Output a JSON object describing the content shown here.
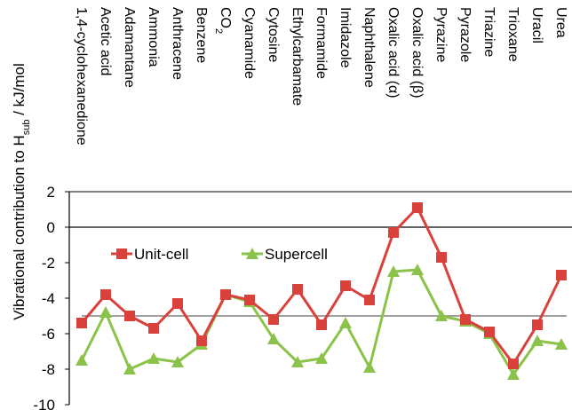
{
  "chart_data": {
    "type": "line",
    "categories": [
      "1,4-cyclohexanedione",
      "Acetic acid",
      "Adamantane",
      "Ammonia",
      "Anthracene",
      "Benzene",
      "CO2",
      "Cyanamide",
      "Cytosine",
      "Ethylcarbamate",
      "Formamide",
      "Imidazole",
      "Naphthalene",
      "Oxalic acid (α)",
      "Oxalic acid (β)",
      "Pyrazine",
      "Pyrazole",
      "Triazine",
      "Trioxane",
      "Uracil",
      "Urea"
    ],
    "series": [
      {
        "name": "Unit-cell",
        "color": "#d9413a",
        "marker": "square",
        "values": [
          -5.4,
          -3.8,
          -5.0,
          -5.7,
          -4.3,
          -6.4,
          -3.8,
          -4.1,
          -5.2,
          -3.5,
          -5.5,
          -3.3,
          -4.1,
          -0.3,
          1.1,
          -1.7,
          -5.2,
          -5.9,
          -7.7,
          -5.5,
          -2.7
        ]
      },
      {
        "name": "Supercell",
        "color": "#8bc34a",
        "marker": "triangle",
        "values": [
          -7.5,
          -4.8,
          -8.0,
          -7.4,
          -7.6,
          -6.6,
          -3.8,
          -4.2,
          -6.3,
          -7.6,
          -7.4,
          -5.4,
          -7.9,
          -2.5,
          -2.4,
          -5.0,
          -5.3,
          -6.0,
          -8.3,
          -6.4,
          -6.6
        ]
      }
    ],
    "reference_line": {
      "value": -5.0,
      "color": "#a0a0a0"
    },
    "ylabel_parts": {
      "pre": "Vibrational contribution to H",
      "sub": "sub",
      "post": " / kJ/mol"
    },
    "ylim": [
      -10,
      2
    ],
    "yticks": [
      2,
      0,
      -2,
      -4,
      -6,
      -8,
      -10
    ],
    "grid": false,
    "legend_position": "middle-left",
    "zero_line": true
  }
}
